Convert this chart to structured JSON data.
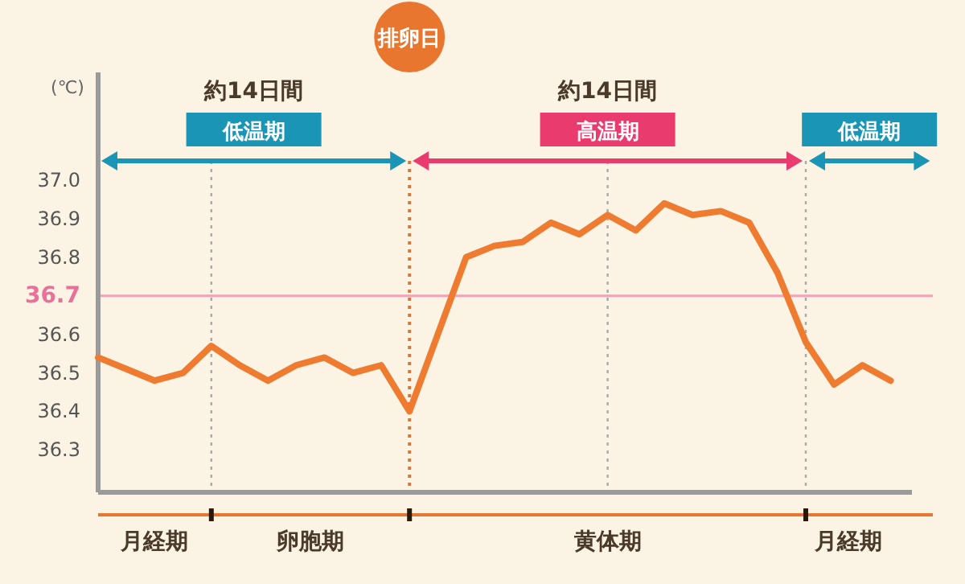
{
  "chart_data": {
    "type": "line",
    "ylabel": "(℃)",
    "categories": [
      null,
      null,
      null,
      null,
      null,
      null,
      null,
      null,
      null,
      null,
      null,
      null,
      null,
      null,
      null,
      null,
      null,
      null,
      null,
      null,
      null,
      null,
      null,
      null,
      null,
      null,
      null,
      null,
      null
    ],
    "series": [
      {
        "color": "#ee7b30",
        "values": [
          36.54,
          36.51,
          36.48,
          36.5,
          36.57,
          36.52,
          36.48,
          36.52,
          36.54,
          36.5,
          36.52,
          36.4,
          36.6,
          36.8,
          36.83,
          36.84,
          36.89,
          36.86,
          36.91,
          36.87,
          36.94,
          36.91,
          36.92,
          36.89,
          36.76,
          36.58,
          36.47,
          36.52,
          36.48
        ]
      }
    ],
    "ylim": [
      36.19,
      37.28
    ],
    "yticks": [
      36.3,
      36.4,
      36.5,
      36.6,
      36.7,
      36.8,
      36.9,
      {
        "value": 37.0,
        "label": "37.0"
      }
    ],
    "ref_lines": [
      {
        "axis": "y",
        "value": 36.7,
        "color": "#f4a0b8",
        "line_style": "solid"
      }
    ],
    "annotations": [
      "約14日間",
      "低温期",
      "排卵日",
      "約14日間",
      "高温期",
      "低温期",
      "月経期",
      "卵胞期",
      "黄体期",
      "月経期"
    ],
    "marker": "none",
    "line_style": "solid",
    "grid": "x"
  }
}
